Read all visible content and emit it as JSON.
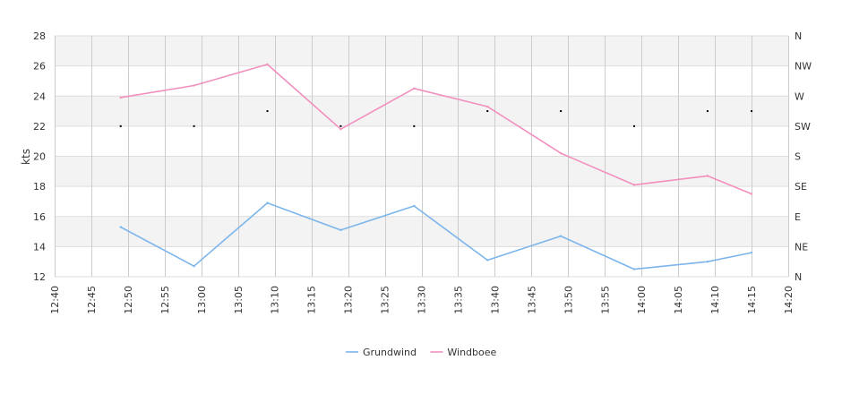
{
  "chart_data": {
    "type": "line",
    "title": "",
    "ylabel": "kts",
    "ylim": [
      12,
      28
    ],
    "yticks": [
      12,
      14,
      16,
      18,
      20,
      22,
      24,
      26,
      28
    ],
    "x_range": [
      "12:40",
      "14:20"
    ],
    "xticks": [
      "12:40",
      "12:45",
      "12:50",
      "12:55",
      "13:00",
      "13:05",
      "13:10",
      "13:15",
      "13:20",
      "13:25",
      "13:30",
      "13:35",
      "13:40",
      "13:45",
      "13:50",
      "13:55",
      "14:00",
      "14:05",
      "14:10",
      "14:15",
      "14:20"
    ],
    "right_axis": {
      "labels": [
        "N",
        "NE",
        "E",
        "SE",
        "S",
        "SW",
        "W",
        "NW",
        "N"
      ],
      "range_degrees": [
        0,
        360
      ]
    },
    "grid": true,
    "legend_position": "bottom",
    "series": [
      {
        "name": "Grundwind",
        "color": "#7cb5ec",
        "x": [
          "12:49",
          "12:59",
          "13:09",
          "13:19",
          "13:29",
          "13:39",
          "13:49",
          "13:59",
          "14:09",
          "14:15"
        ],
        "values": [
          15.3,
          12.7,
          16.9,
          15.1,
          16.7,
          13.1,
          14.7,
          12.5,
          13.0,
          13.6
        ]
      },
      {
        "name": "Windboee",
        "color": "#f28fbe",
        "x": [
          "12:49",
          "12:59",
          "13:09",
          "13:19",
          "13:29",
          "13:39",
          "13:49",
          "13:59",
          "14:09",
          "14:15"
        ],
        "values": [
          23.9,
          24.7,
          26.1,
          21.8,
          24.5,
          23.3,
          20.2,
          18.1,
          18.7,
          17.5
        ]
      }
    ],
    "direction": {
      "marker_color": "#000000",
      "x": [
        "12:49",
        "12:59",
        "13:09",
        "13:19",
        "13:29",
        "13:39",
        "13:49",
        "13:59",
        "14:09",
        "14:15"
      ],
      "degrees": [
        225,
        225,
        247.5,
        225,
        225,
        247.5,
        247.5,
        225,
        247.5,
        247.5
      ]
    }
  }
}
